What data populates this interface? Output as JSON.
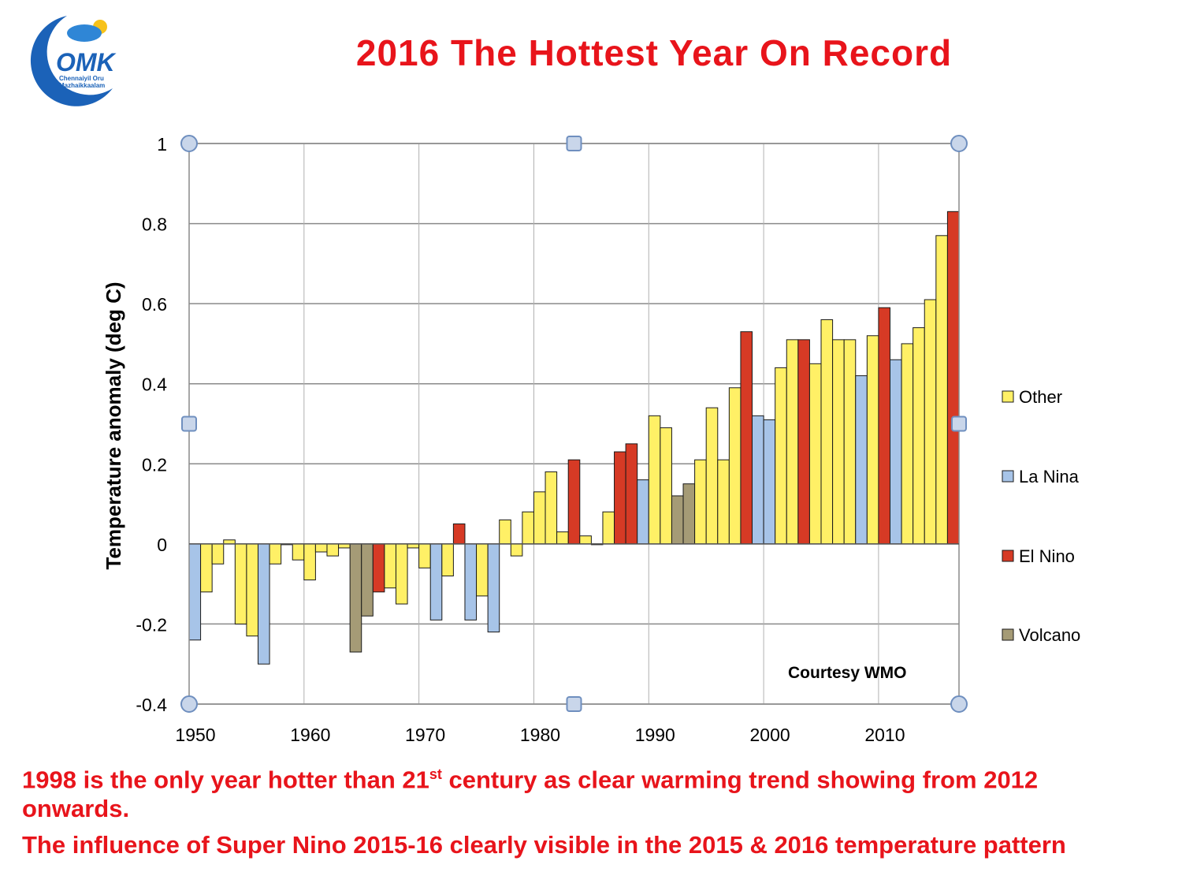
{
  "header": {
    "title": "2016 The Hottest Year On Record",
    "logo_text": "OMK",
    "logo_subtext_1": "Chennaiyil Oru",
    "logo_subtext_2": "Mazhaikkaalam"
  },
  "chart_data": {
    "type": "bar",
    "ylabel": "Temperature anomaly (deg C)",
    "xlabel": "",
    "ylim": [
      -0.4,
      1
    ],
    "xlim": [
      1950,
      2016
    ],
    "yticks": [
      "1",
      "0.8",
      "0.6",
      "0.4",
      "0.2",
      "0",
      "-0.2",
      "-0.4"
    ],
    "ytick_values": [
      1,
      0.8,
      0.6,
      0.4,
      0.2,
      0,
      -0.2,
      -0.4
    ],
    "xticks": [
      "1950",
      "1960",
      "1970",
      "1980",
      "1990",
      "2000",
      "2010"
    ],
    "xtick_values": [
      1950,
      1960,
      1970,
      1980,
      1990,
      2000,
      2010
    ],
    "grid": true,
    "legend_position": "right",
    "colors": {
      "Other": "#fff066",
      "La Nina": "#a7c4e8",
      "El Nino": "#d63a25",
      "Volcano": "#a59b76"
    },
    "legend": [
      "Other",
      "La Nina",
      "El Nino",
      "Volcano"
    ],
    "bars": [
      {
        "year": 1950,
        "value": -0.24,
        "category": "La Nina"
      },
      {
        "year": 1951,
        "value": -0.12,
        "category": "Other"
      },
      {
        "year": 1952,
        "value": -0.05,
        "category": "Other"
      },
      {
        "year": 1953,
        "value": 0.01,
        "category": "Other"
      },
      {
        "year": 1954,
        "value": -0.2,
        "category": "Other"
      },
      {
        "year": 1955,
        "value": -0.23,
        "category": "Other"
      },
      {
        "year": 1956,
        "value": -0.3,
        "category": "La Nina"
      },
      {
        "year": 1957,
        "value": -0.05,
        "category": "Other"
      },
      {
        "year": 1958,
        "value": 0.0,
        "category": "Other"
      },
      {
        "year": 1959,
        "value": -0.04,
        "category": "Other"
      },
      {
        "year": 1960,
        "value": -0.09,
        "category": "Other"
      },
      {
        "year": 1961,
        "value": -0.02,
        "category": "Other"
      },
      {
        "year": 1962,
        "value": -0.03,
        "category": "Other"
      },
      {
        "year": 1963,
        "value": -0.01,
        "category": "Other"
      },
      {
        "year": 1964,
        "value": -0.27,
        "category": "Volcano"
      },
      {
        "year": 1965,
        "value": -0.18,
        "category": "Volcano"
      },
      {
        "year": 1966,
        "value": -0.12,
        "category": "El Nino"
      },
      {
        "year": 1967,
        "value": -0.11,
        "category": "Other"
      },
      {
        "year": 1968,
        "value": -0.15,
        "category": "Other"
      },
      {
        "year": 1969,
        "value": -0.01,
        "category": "Other"
      },
      {
        "year": 1970,
        "value": -0.06,
        "category": "Other"
      },
      {
        "year": 1971,
        "value": -0.19,
        "category": "La Nina"
      },
      {
        "year": 1972,
        "value": -0.08,
        "category": "Other"
      },
      {
        "year": 1973,
        "value": 0.05,
        "category": "El Nino"
      },
      {
        "year": 1974,
        "value": -0.19,
        "category": "La Nina"
      },
      {
        "year": 1975,
        "value": -0.13,
        "category": "Other"
      },
      {
        "year": 1976,
        "value": -0.22,
        "category": "La Nina"
      },
      {
        "year": 1977,
        "value": 0.06,
        "category": "Other"
      },
      {
        "year": 1978,
        "value": -0.03,
        "category": "Other"
      },
      {
        "year": 1979,
        "value": 0.08,
        "category": "Other"
      },
      {
        "year": 1980,
        "value": 0.13,
        "category": "Other"
      },
      {
        "year": 1981,
        "value": 0.18,
        "category": "Other"
      },
      {
        "year": 1982,
        "value": 0.03,
        "category": "Other"
      },
      {
        "year": 1983,
        "value": 0.21,
        "category": "El Nino"
      },
      {
        "year": 1984,
        "value": 0.02,
        "category": "Other"
      },
      {
        "year": 1985,
        "value": 0.0,
        "category": "Other"
      },
      {
        "year": 1986,
        "value": 0.08,
        "category": "Other"
      },
      {
        "year": 1987,
        "value": 0.23,
        "category": "El Nino"
      },
      {
        "year": 1988,
        "value": 0.25,
        "category": "El Nino"
      },
      {
        "year": 1989,
        "value": 0.16,
        "category": "La Nina"
      },
      {
        "year": 1990,
        "value": 0.32,
        "category": "Other"
      },
      {
        "year": 1991,
        "value": 0.29,
        "category": "Other"
      },
      {
        "year": 1992,
        "value": 0.12,
        "category": "Volcano"
      },
      {
        "year": 1993,
        "value": 0.15,
        "category": "Volcano"
      },
      {
        "year": 1994,
        "value": 0.21,
        "category": "Other"
      },
      {
        "year": 1995,
        "value": 0.34,
        "category": "Other"
      },
      {
        "year": 1996,
        "value": 0.21,
        "category": "Other"
      },
      {
        "year": 1997,
        "value": 0.39,
        "category": "Other"
      },
      {
        "year": 1998,
        "value": 0.53,
        "category": "El Nino"
      },
      {
        "year": 1999,
        "value": 0.32,
        "category": "La Nina"
      },
      {
        "year": 2000,
        "value": 0.31,
        "category": "La Nina"
      },
      {
        "year": 2001,
        "value": 0.44,
        "category": "Other"
      },
      {
        "year": 2002,
        "value": 0.51,
        "category": "Other"
      },
      {
        "year": 2003,
        "value": 0.51,
        "category": "El Nino"
      },
      {
        "year": 2004,
        "value": 0.45,
        "category": "Other"
      },
      {
        "year": 2005,
        "value": 0.56,
        "category": "Other"
      },
      {
        "year": 2006,
        "value": 0.51,
        "category": "Other"
      },
      {
        "year": 2007,
        "value": 0.51,
        "category": "Other"
      },
      {
        "year": 2008,
        "value": 0.42,
        "category": "La Nina"
      },
      {
        "year": 2009,
        "value": 0.52,
        "category": "Other"
      },
      {
        "year": 2010,
        "value": 0.59,
        "category": "El Nino"
      },
      {
        "year": 2011,
        "value": 0.46,
        "category": "La Nina"
      },
      {
        "year": 2012,
        "value": 0.5,
        "category": "Other"
      },
      {
        "year": 2013,
        "value": 0.54,
        "category": "Other"
      },
      {
        "year": 2014,
        "value": 0.61,
        "category": "Other"
      },
      {
        "year": 2015,
        "value": 0.77,
        "category": "Other"
      },
      {
        "year": 2016,
        "value": 0.83,
        "category": "El Nino"
      }
    ],
    "annotation": "Courtesy WMO"
  },
  "captions": {
    "line1_pre": "1998 is the only year hotter than 21",
    "line1_sup": "st",
    "line1_post": " century as clear warming trend showing from 2012",
    "line2": "onwards.",
    "line3": "The influence of Super Nino 2015-16 clearly visible in the 2015 & 2016 temperature pattern"
  }
}
